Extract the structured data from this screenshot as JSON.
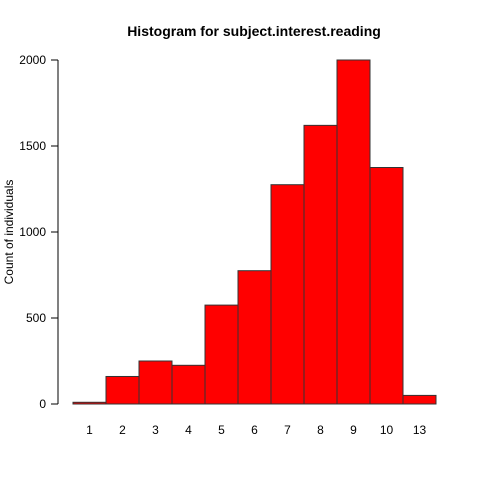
{
  "chart_data": {
    "type": "bar",
    "title": "Histogram for subject.interest.reading",
    "xlabel": "",
    "ylabel": "Count of individuals",
    "categories": [
      "1",
      "2",
      "3",
      "4",
      "5",
      "6",
      "7",
      "8",
      "9",
      "10",
      "13"
    ],
    "values": [
      10,
      160,
      250,
      225,
      575,
      775,
      1275,
      1620,
      2000,
      1375,
      50
    ],
    "yticks": [
      0,
      500,
      1000,
      1500,
      2000
    ],
    "ylim": [
      0,
      2000
    ],
    "bar_color": "#ff0000",
    "bar_border_color": "#333333",
    "grid": false
  }
}
